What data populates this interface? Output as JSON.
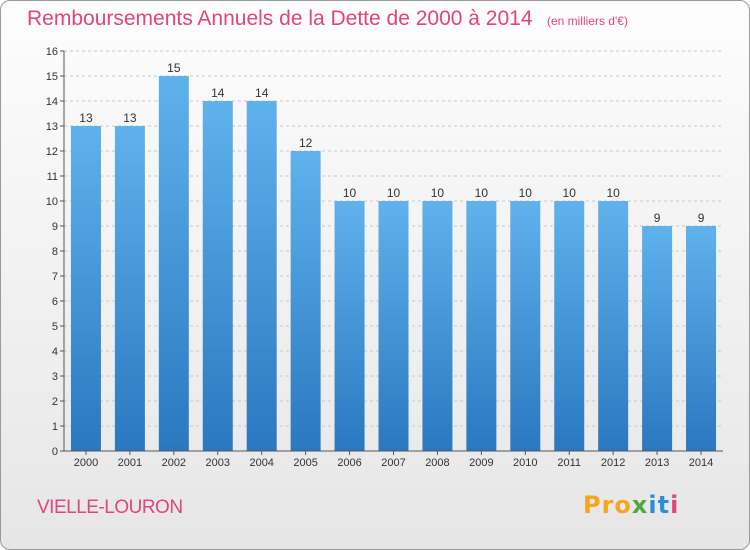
{
  "title": "Remboursements Annuels de la Dette de 2000 à 2014",
  "unit": "(en milliers d'€)",
  "commune": "VIELLE-LOURON",
  "logo": {
    "text": "Proxiti",
    "parts": [
      "Pro",
      "x",
      "it",
      "i"
    ]
  },
  "colors": {
    "accent": "#e0457b",
    "bar_top": "#5fb2ec",
    "bar_bottom": "#2a78c0",
    "gridline": "#c8c8c8"
  },
  "chart_data": {
    "type": "bar",
    "categories": [
      "2000",
      "2001",
      "2002",
      "2003",
      "2004",
      "2005",
      "2006",
      "2007",
      "2008",
      "2009",
      "2010",
      "2011",
      "2012",
      "2013",
      "2014"
    ],
    "values": [
      13,
      13,
      15,
      14,
      14,
      12,
      10,
      10,
      10,
      10,
      10,
      10,
      10,
      9,
      9
    ],
    "data_labels": [
      "13",
      "13",
      "15",
      "14",
      "14",
      "12",
      "10",
      "10",
      "10",
      "10",
      "10",
      "10",
      "10",
      "9",
      "9"
    ],
    "yticks": [
      "0",
      "1",
      "2",
      "3",
      "4",
      "5",
      "6",
      "7",
      "8",
      "9",
      "10",
      "11",
      "12",
      "13",
      "14",
      "15",
      "16"
    ],
    "ylim": [
      0,
      16
    ],
    "grid": true,
    "xlabel": "",
    "ylabel": ""
  }
}
